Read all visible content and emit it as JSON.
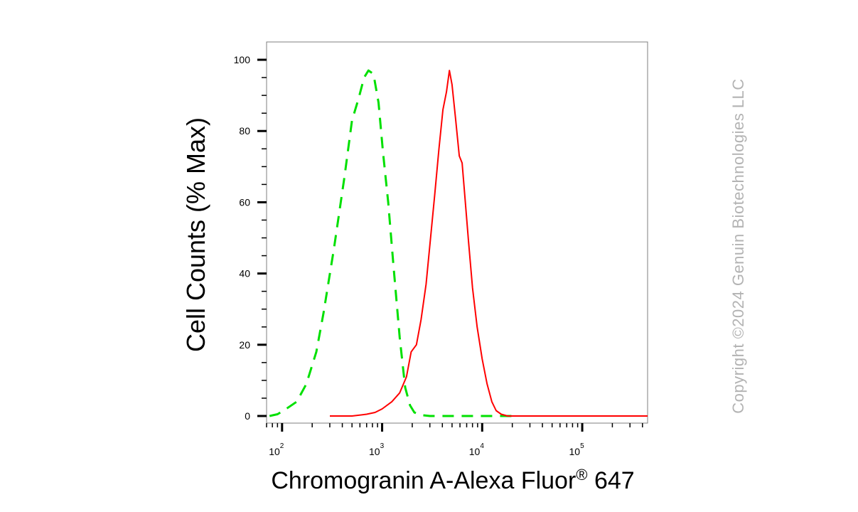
{
  "chart_data": {
    "type": "line",
    "xlabel": "Chromogranin A-Alexa Fluor",
    "xlabel_sup": "®",
    "xlabel_suffix": " 647",
    "ylabel": "Cell Counts (% Max)",
    "x_scale": "log",
    "xlim": [
      70,
      450000
    ],
    "ylim": [
      -2,
      105
    ],
    "y_ticks": [
      0,
      20,
      40,
      60,
      80,
      100
    ],
    "x_ticks": [
      {
        "value": 100,
        "base": "10",
        "exp": "2"
      },
      {
        "value": 1000,
        "base": "10",
        "exp": "3"
      },
      {
        "value": 10000,
        "base": "10",
        "exp": "4"
      },
      {
        "value": 100000,
        "base": "10",
        "exp": "5"
      }
    ],
    "grid": false,
    "series": [
      {
        "color": "#00e000",
        "style": "dashed",
        "points": [
          [
            75,
            0
          ],
          [
            90,
            0.5
          ],
          [
            110,
            2
          ],
          [
            140,
            4
          ],
          [
            175,
            9
          ],
          [
            220,
            18
          ],
          [
            260,
            29
          ],
          [
            330,
            47
          ],
          [
            420,
            67
          ],
          [
            500,
            83
          ],
          [
            580,
            89
          ],
          [
            660,
            95
          ],
          [
            730,
            97
          ],
          [
            820,
            96
          ],
          [
            920,
            88
          ],
          [
            1020,
            74
          ],
          [
            1150,
            60
          ],
          [
            1300,
            42
          ],
          [
            1500,
            22
          ],
          [
            1700,
            8
          ],
          [
            1900,
            3
          ],
          [
            2100,
            1
          ],
          [
            2400,
            0.3
          ],
          [
            3000,
            0
          ],
          [
            10000,
            0
          ],
          [
            20000,
            0
          ]
        ]
      },
      {
        "color": "#ff0000",
        "style": "solid",
        "points": [
          [
            300,
            0
          ],
          [
            500,
            0
          ],
          [
            700,
            0.5
          ],
          [
            850,
            1
          ],
          [
            1000,
            2
          ],
          [
            1250,
            4
          ],
          [
            1500,
            6.5
          ],
          [
            1750,
            11
          ],
          [
            1950,
            18
          ],
          [
            2200,
            20
          ],
          [
            2450,
            27
          ],
          [
            2750,
            37
          ],
          [
            3050,
            50
          ],
          [
            3350,
            62
          ],
          [
            3700,
            75
          ],
          [
            4050,
            86
          ],
          [
            4400,
            91
          ],
          [
            4700,
            97
          ],
          [
            5000,
            93
          ],
          [
            5400,
            84
          ],
          [
            5900,
            73
          ],
          [
            6300,
            71
          ],
          [
            6700,
            62
          ],
          [
            7300,
            49
          ],
          [
            8000,
            36
          ],
          [
            8900,
            25
          ],
          [
            10000,
            16
          ],
          [
            11200,
            9
          ],
          [
            12500,
            4
          ],
          [
            13800,
            1.5
          ],
          [
            15500,
            0.5
          ],
          [
            18000,
            0
          ],
          [
            30000,
            0
          ],
          [
            100000,
            0
          ],
          [
            450000,
            0
          ]
        ]
      }
    ]
  },
  "copyright": "Copyright ©2024 Genuin Biotechnologies LLC"
}
